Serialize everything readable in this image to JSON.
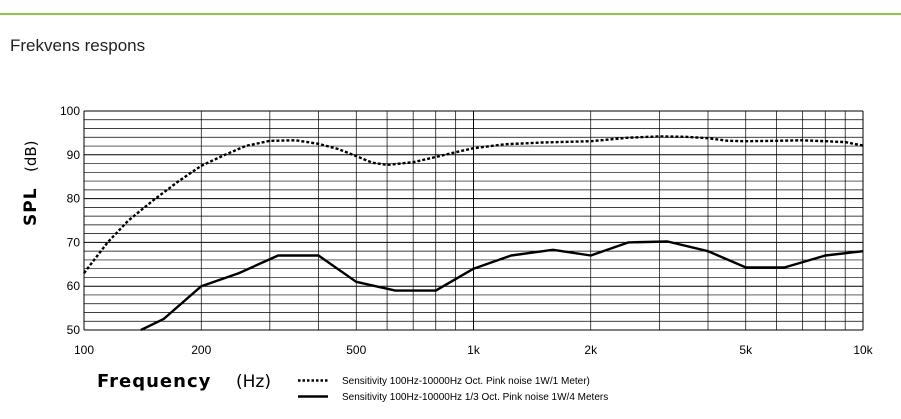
{
  "section_title": "Frekvens respons",
  "colors": {
    "accent_rule": "#8cc63f"
  },
  "chart_data": {
    "type": "line",
    "xlabel": "Frequency",
    "xlabel_unit": "(Hz)",
    "ylabel": "SPL",
    "ylabel_unit": "(dB)",
    "x_scale": "log",
    "xlim": [
      100,
      10000
    ],
    "ylim": [
      50,
      100
    ],
    "grid": true,
    "x_ticks": [
      {
        "value": 100,
        "label": "100"
      },
      {
        "value": 200,
        "label": "200"
      },
      {
        "value": 500,
        "label": "500"
      },
      {
        "value": 1000,
        "label": "1k"
      },
      {
        "value": 2000,
        "label": "2k"
      },
      {
        "value": 5000,
        "label": "5k"
      },
      {
        "value": 10000,
        "label": "10k"
      }
    ],
    "y_ticks": [
      {
        "value": 50,
        "label": "50"
      },
      {
        "value": 60,
        "label": "60"
      },
      {
        "value": 70,
        "label": "70"
      },
      {
        "value": 80,
        "label": "80"
      },
      {
        "value": 90,
        "label": "90"
      },
      {
        "value": 100,
        "label": "100"
      }
    ],
    "legend_placement": "bottom",
    "series": [
      {
        "name": "Sensitivity 100Hz-10000Hz Oct. Pink noise 1W/1 Meter)",
        "style": "dotted",
        "x": [
          100,
          115,
          130,
          150,
          175,
          200,
          230,
          260,
          300,
          350,
          400,
          450,
          500,
          550,
          600,
          700,
          800,
          900,
          1000,
          1200,
          1500,
          2000,
          2500,
          3000,
          3500,
          4000,
          4500,
          5000,
          6000,
          7000,
          8000,
          9000,
          10000
        ],
        "values": [
          63,
          70,
          75,
          79.5,
          84,
          87.5,
          90,
          92,
          93.2,
          93.3,
          92.5,
          91.3,
          89.7,
          88.2,
          87.7,
          88.3,
          89.5,
          90.6,
          91.5,
          92.4,
          92.8,
          93.1,
          93.9,
          94.2,
          94.1,
          93.8,
          93.2,
          93.1,
          93.2,
          93.3,
          93.1,
          92.9,
          92.1
        ]
      },
      {
        "name": "Sensitivity 100Hz-10000Hz 1/3 Oct. Pink noise 1W/4 Meters",
        "style": "solid",
        "x": [
          140,
          160,
          200,
          250,
          315,
          400,
          500,
          630,
          800,
          1000,
          1250,
          1600,
          2000,
          2500,
          3150,
          4000,
          5000,
          6300,
          8000,
          10000
        ],
        "values": [
          50,
          52.5,
          60,
          63,
          67,
          67,
          61,
          59,
          59,
          64,
          67,
          68.3,
          67,
          70,
          70.2,
          68,
          64.3,
          64.3,
          67,
          68
        ]
      }
    ]
  }
}
